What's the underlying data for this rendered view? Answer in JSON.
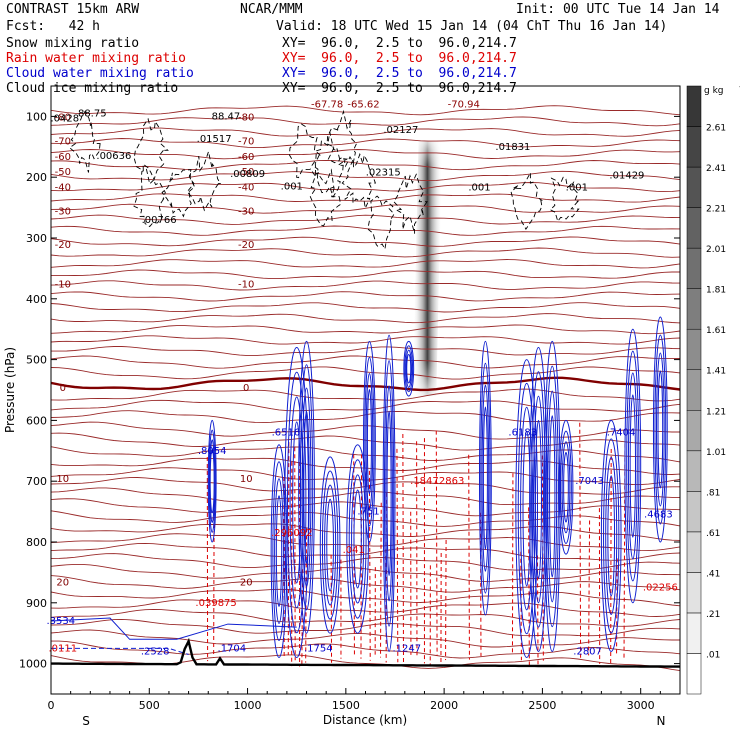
{
  "header": {
    "model": "CONTRAST 15km ARW",
    "org": "NCAR/MMM",
    "init": "Init: 00 UTC Tue 14 Jan 14",
    "fcst": "Fcst:   42 h",
    "valid": "Valid: 18 UTC Wed 15 Jan 14 (04 ChT Thu 16 Jan 14)",
    "fields": [
      {
        "label": "Snow mixing ratio",
        "xy": "XY=  96.0,  2.5 to  96.0,214.7",
        "color": "#000000"
      },
      {
        "label": "Rain water mixing ratio",
        "xy": "XY=  96.0,  2.5 to  96.0,214.7",
        "color": "#dd0000"
      },
      {
        "label": "Cloud water mixing ratio",
        "xy": "XY=  96.0,  2.5 to  96.0,214.7",
        "color": "#0000cc"
      },
      {
        "label": "Cloud ice mixing ratio",
        "xy": "XY=  96.0,  2.5 to  96.0,214.7",
        "color": "#000000"
      }
    ]
  },
  "chart_data": {
    "type": "contour-cross-section",
    "ylabel": "Pressure (hPa)",
    "xlabel": "Distance (km)",
    "xlim": [
      0,
      3200
    ],
    "ylim": [
      1050,
      50
    ],
    "x_ticks": [
      0,
      500,
      1000,
      1500,
      2000,
      2500,
      3000
    ],
    "y_ticks": [
      100,
      200,
      300,
      400,
      500,
      600,
      700,
      800,
      900,
      1000
    ],
    "x_end_labels": {
      "left": "S",
      "right": "N"
    },
    "colorbar": {
      "unit": "g kg",
      "unit_exp": "-1",
      "labels": [
        ".01",
        ".21",
        ".41",
        ".61",
        ".81",
        "1.01",
        "1.21",
        "1.41",
        "1.61",
        "1.81",
        "2.01",
        "2.21",
        "2.41",
        "2.61"
      ]
    },
    "temperature_contours": [
      {
        "label": "-80",
        "p": 100
      },
      {
        "label": "-70",
        "p": 140
      },
      {
        "label": "-60",
        "p": 165
      },
      {
        "label": "-50",
        "p": 190
      },
      {
        "label": "-40",
        "p": 215
      },
      {
        "label": "-30",
        "p": 255
      },
      {
        "label": "-20",
        "p": 310
      },
      {
        "label": "-10",
        "p": 375
      },
      {
        "label": "0",
        "p": 545
      },
      {
        "label": "10",
        "p": 695
      },
      {
        "label": "20",
        "p": 865
      }
    ],
    "annotations": [
      {
        "text": "-67.78",
        "x": 1405,
        "p": 85,
        "color": "#8b0000"
      },
      {
        "text": "-65.62",
        "x": 1590,
        "p": 85,
        "color": "#8b0000"
      },
      {
        "text": "-70.94",
        "x": 2100,
        "p": 85,
        "color": "#8b0000"
      },
      {
        "text": "88.75",
        "x": 210,
        "p": 100,
        "color": "#000000"
      },
      {
        "text": "88.47",
        "x": 890,
        "p": 105,
        "color": "#000000"
      },
      {
        "text": ".0428",
        "x": 70,
        "p": 108,
        "color": "#000000"
      },
      {
        "text": ".01517",
        "x": 830,
        "p": 142,
        "color": "#000000"
      },
      {
        "text": ".02127",
        "x": 1780,
        "p": 127,
        "color": "#000000"
      },
      {
        "text": ".01831",
        "x": 2350,
        "p": 155,
        "color": "#000000"
      },
      {
        "text": ".00636",
        "x": 320,
        "p": 170,
        "color": "#000000"
      },
      {
        "text": ".00809",
        "x": 1000,
        "p": 200,
        "color": "#000000"
      },
      {
        "text": ".02315",
        "x": 1690,
        "p": 197,
        "color": "#000000"
      },
      {
        "text": ".01429",
        "x": 2930,
        "p": 202,
        "color": "#000000"
      },
      {
        "text": ".00766",
        "x": 550,
        "p": 275,
        "color": "#000000"
      },
      {
        "text": ".001",
        "x": 1225,
        "p": 220,
        "color": "#000000"
      },
      {
        "text": ".001",
        "x": 2180,
        "p": 222,
        "color": "#000000"
      },
      {
        "text": ".001",
        "x": 2675,
        "p": 222,
        "color": "#000000"
      },
      {
        "text": ".8054",
        "x": 820,
        "p": 655,
        "color": "#0000cc"
      },
      {
        "text": ".6516",
        "x": 1195,
        "p": 625,
        "color": "#0000cc"
      },
      {
        "text": ".6183",
        "x": 2400,
        "p": 625,
        "color": "#0000cc"
      },
      {
        "text": ".7404",
        "x": 2900,
        "p": 625,
        "color": "#0000cc"
      },
      {
        "text": ".7043",
        "x": 2740,
        "p": 705,
        "color": "#0000cc"
      },
      {
        "text": ".4683",
        "x": 3090,
        "p": 760,
        "color": "#0000cc"
      },
      {
        "text": ".751",
        "x": 1615,
        "p": 755,
        "color": "#0000cc"
      },
      {
        "text": ".3534",
        "x": 50,
        "p": 935,
        "color": "#0000cc"
      },
      {
        "text": ".2528",
        "x": 530,
        "p": 985,
        "color": "#0000cc"
      },
      {
        "text": ".1704",
        "x": 920,
        "p": 980,
        "color": "#0000cc"
      },
      {
        "text": ".1754",
        "x": 1360,
        "p": 980,
        "color": "#0000cc"
      },
      {
        "text": ".1247",
        "x": 1810,
        "p": 980,
        "color": "#0000cc"
      },
      {
        "text": ".2807",
        "x": 2730,
        "p": 985,
        "color": "#0000cc"
      },
      {
        "text": ".1847",
        "x": 1900,
        "p": 705,
        "color": "#dd0000"
      },
      {
        "text": ".2863",
        "x": 2030,
        "p": 705,
        "color": "#dd0000"
      },
      {
        "text": ".296092",
        "x": 1225,
        "p": 790,
        "color": "#dd0000"
      },
      {
        "text": ".041",
        "x": 1540,
        "p": 818,
        "color": "#dd0000"
      },
      {
        "text": ".039875",
        "x": 840,
        "p": 905,
        "color": "#dd0000"
      },
      {
        "text": ".0111",
        "x": 60,
        "p": 980,
        "color": "#dd0000"
      },
      {
        "text": ".02256",
        "x": 3100,
        "p": 880,
        "color": "#dd0000"
      }
    ]
  }
}
